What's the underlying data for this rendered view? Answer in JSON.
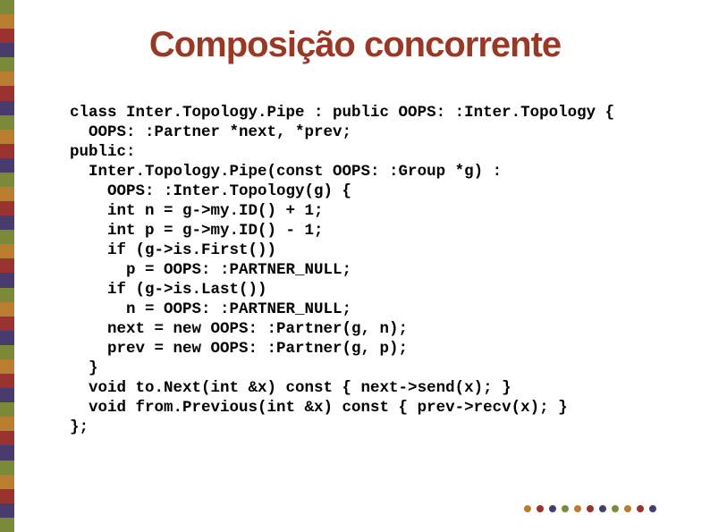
{
  "title": "Composição concorrente",
  "code_lines": [
    "class Inter.Topology.Pipe : public OOPS: :Inter.Topology {",
    "  OOPS: :Partner *next, *prev;",
    "public:",
    "  Inter.Topology.Pipe(const OOPS: :Group *g) :",
    "    OOPS: :Inter.Topology(g) {",
    "    int n = g->my.ID() + 1;",
    "    int p = g->my.ID() - 1;",
    "    if (g->is.First())",
    "      p = OOPS: :PARTNER_NULL;",
    "    if (g->is.Last())",
    "      n = OOPS: :PARTNER_NULL;",
    "    next = new OOPS: :Partner(g, n);",
    "    prev = new OOPS: :Partner(g, p);",
    "  }",
    "  void to.Next(int &x) const { next->send(x); }",
    "  void from.Previous(int &x) const { prev->recv(x); }",
    "};"
  ],
  "title_color": "#9a3826",
  "bg_color": "#ffffff",
  "left_border_colors": [
    "#7a8a3a",
    "#b97e2e",
    "#9a3330",
    "#4a3b6e",
    "#7a8a3a",
    "#b97e2e",
    "#9a3330",
    "#4a3b6e",
    "#7a8a3a",
    "#b97e2e",
    "#9a3330",
    "#4a3b6e",
    "#7a8a3a",
    "#b97e2e",
    "#9a3330",
    "#4a3b6e",
    "#7a8a3a",
    "#b97e2e",
    "#9a3330",
    "#4a3b6e",
    "#7a8a3a",
    "#b97e2e",
    "#9a3330",
    "#4a3b6e",
    "#7a8a3a",
    "#b97e2e",
    "#9a3330",
    "#4a3b6e",
    "#7a8a3a",
    "#b97e2e",
    "#9a3330",
    "#4a3b6e",
    "#7a8a3a",
    "#b97e2e",
    "#9a3330",
    "#4a3b6e",
    "#7a8a3a"
  ],
  "dot_colors": [
    "#b97e2e",
    "#9a3330",
    "#4a3b6e",
    "#7a8a3a",
    "#b97e2e",
    "#9a3330",
    "#4a3b6e",
    "#7a8a3a",
    "#b97e2e",
    "#9a3330",
    "#4a3b6e"
  ]
}
